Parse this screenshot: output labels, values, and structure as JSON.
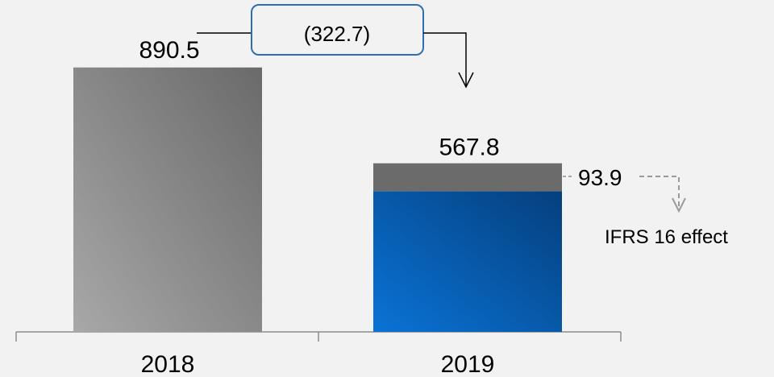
{
  "chart_data": {
    "type": "bar",
    "categories": [
      "2018",
      "2019"
    ],
    "series": [
      {
        "values": [
          890.5,
          473.9
        ]
      },
      {
        "name": "IFRS 16 effect",
        "values": [
          0,
          93.9
        ]
      }
    ],
    "totals": [
      890.5,
      567.8
    ],
    "totals_labels": [
      "890.5",
      "567.8"
    ],
    "segment_label": "93.9",
    "change_label": "(322.7)",
    "annotation": "IFRS 16 effect",
    "title": "",
    "xlabel": "",
    "ylabel": "",
    "ylim": [
      0,
      1000
    ],
    "grid": false,
    "colors": {
      "bar_2018": "#8c8c8c",
      "bar_2019": "#0a5cb0",
      "ifrs16": "#6b6b6b",
      "callout_border": "#2f6db5",
      "dashed": "#9a9a9a",
      "axis": "#8c8c8c"
    }
  }
}
